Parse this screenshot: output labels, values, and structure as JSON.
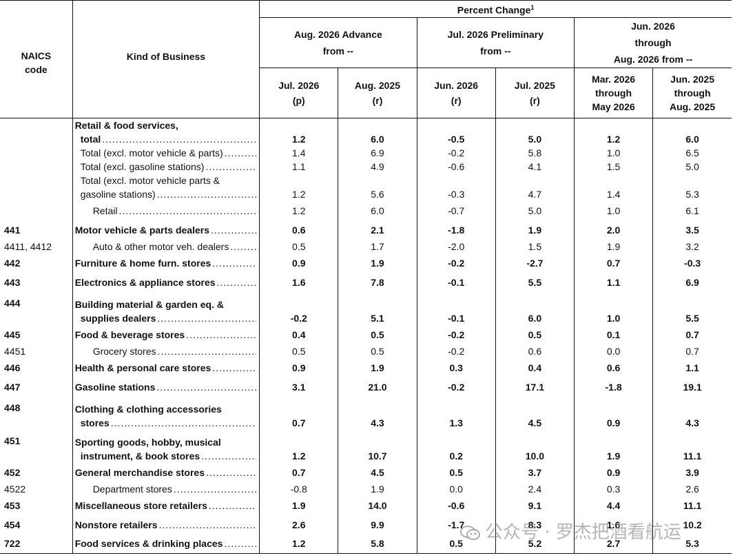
{
  "header": {
    "percent_change": "Percent Change",
    "footnote": "1",
    "naics_line1": "NAICS",
    "naics_line2": "code",
    "kind": "Kind of Business",
    "group1_line1": "Aug. 2026 Advance",
    "group1_line2": "from --",
    "group2_line1": "Jul. 2026 Preliminary",
    "group2_line2": "from --",
    "group3_line1": "Jun. 2026",
    "group3_line2": "through",
    "group3_line3": "Aug. 2026 from --",
    "col1_line1": "Jul. 2026",
    "col1_line2": "(p)",
    "col2_line1": "Aug. 2025",
    "col2_line2": "(r)",
    "col3_line1": "Jun. 2026",
    "col3_line2": "(r)",
    "col4_line1": "Jul. 2025",
    "col4_line2": "(r)",
    "col5_line1": "Mar. 2026",
    "col5_line2": "through",
    "col5_line3": "May 2026",
    "col6_line1": "Jun. 2025",
    "col6_line2": "through",
    "col6_line3": "Aug. 2025"
  },
  "rows": [
    {
      "code": "",
      "kind_pre": "Retail & food services,",
      "kind": "total",
      "bold": true,
      "indent": 1,
      "values": [
        "1.2",
        "6.0",
        "-0.5",
        "5.0",
        "1.2",
        "6.0"
      ]
    },
    {
      "code": "",
      "kind": "Total (excl. motor vehicle & parts)",
      "bold": false,
      "indent": 1,
      "values": [
        "1.4",
        "6.9",
        "-0.2",
        "5.8",
        "1.0",
        "6.5"
      ]
    },
    {
      "code": "",
      "kind": "Total (excl. gasoline stations)",
      "bold": false,
      "indent": 1,
      "values": [
        "1.1",
        "4.9",
        "-0.6",
        "4.1",
        "1.5",
        "5.0"
      ]
    },
    {
      "code": "",
      "kind_pre": "Total (excl. motor vehicle parts &",
      "kind": "gasoline stations)",
      "bold": false,
      "indent": 1,
      "values": [
        "1.2",
        "5.6",
        "-0.3",
        "4.7",
        "1.4",
        "5.3"
      ]
    },
    {
      "code": "",
      "kind": "Retail",
      "bold": false,
      "indent": 2,
      "values": [
        "1.2",
        "6.0",
        "-0.7",
        "5.0",
        "1.0",
        "6.1"
      ]
    },
    {
      "code": "441",
      "kind": "Motor vehicle & parts dealers",
      "bold": true,
      "indent": 0,
      "values": [
        "0.6",
        "2.1",
        "-1.8",
        "1.9",
        "2.0",
        "3.5"
      ]
    },
    {
      "code": "4411, 4412",
      "kind": "Auto & other motor veh. dealers",
      "bold": false,
      "indent": 2,
      "values": [
        "0.5",
        "1.7",
        "-2.0",
        "1.5",
        "1.9",
        "3.2"
      ]
    },
    {
      "code": "442",
      "kind": "Furniture & home furn. stores",
      "bold": true,
      "indent": 0,
      "values": [
        "0.9",
        "1.9",
        "-0.2",
        "-2.7",
        "0.7",
        "-0.3"
      ]
    },
    {
      "code": "443",
      "kind": "Electronics & appliance stores",
      "bold": true,
      "indent": 0,
      "values": [
        "1.6",
        "7.8",
        "-0.1",
        "5.5",
        "1.1",
        "6.9"
      ]
    },
    {
      "code": "444",
      "kind_pre": "Building material & garden eq. &",
      "kind": "supplies dealers",
      "bold": true,
      "indent": 0,
      "values": [
        "-0.2",
        "5.1",
        "-0.1",
        "6.0",
        "1.0",
        "5.5"
      ]
    },
    {
      "code": "445",
      "kind": "Food & beverage stores",
      "bold": true,
      "indent": 0,
      "values": [
        "0.4",
        "0.5",
        "-0.2",
        "0.5",
        "0.1",
        "0.7"
      ]
    },
    {
      "code": "4451",
      "kind": "Grocery stores",
      "bold": false,
      "indent": 2,
      "values": [
        "0.5",
        "0.5",
        "-0.2",
        "0.6",
        "0.0",
        "0.7"
      ]
    },
    {
      "code": "446",
      "kind": "Health & personal care stores",
      "bold": true,
      "indent": 0,
      "values": [
        "0.9",
        "1.9",
        "0.3",
        "0.4",
        "0.6",
        "1.1"
      ]
    },
    {
      "code": "447",
      "kind": "Gasoline stations",
      "bold": true,
      "indent": 0,
      "values": [
        "3.1",
        "21.0",
        "-0.2",
        "17.1",
        "-1.8",
        "19.1"
      ]
    },
    {
      "code": "448",
      "kind_pre": "Clothing & clothing accessories",
      "kind": "stores",
      "bold": true,
      "indent": 0,
      "values": [
        "0.7",
        "4.3",
        "1.3",
        "4.5",
        "0.9",
        "4.3"
      ]
    },
    {
      "code": "451",
      "kind_pre": "Sporting goods, hobby, musical",
      "kind": "instrument, & book stores",
      "bold": true,
      "indent": 0,
      "values": [
        "1.2",
        "10.7",
        "0.2",
        "10.0",
        "1.9",
        "11.1"
      ]
    },
    {
      "code": "452",
      "kind": "General merchandise stores",
      "bold": true,
      "indent": 0,
      "values": [
        "0.7",
        "4.5",
        "0.5",
        "3.7",
        "0.9",
        "3.9"
      ]
    },
    {
      "code": "4522",
      "kind": "Department stores",
      "bold": false,
      "indent": 2,
      "values": [
        "-0.8",
        "1.9",
        "0.0",
        "2.4",
        "0.3",
        "2.6"
      ]
    },
    {
      "code": "453",
      "kind": "Miscellaneous store retailers",
      "bold": true,
      "indent": 0,
      "values": [
        "1.9",
        "14.0",
        "-0.6",
        "9.1",
        "4.4",
        "11.1"
      ]
    },
    {
      "code": "454",
      "kind": "Nonstore retailers",
      "bold": true,
      "indent": 0,
      "values": [
        "2.6",
        "9.9",
        "-1.7",
        "8.3",
        "1.6",
        "10.2"
      ]
    },
    {
      "code": "722",
      "kind": "Food services & drinking places",
      "bold": true,
      "indent": 0,
      "values": [
        "1.2",
        "5.8",
        "0.5",
        "5.2",
        "2.7",
        "5.3"
      ]
    }
  ],
  "watermark": "公众号 · 罗杰把酒看航运"
}
